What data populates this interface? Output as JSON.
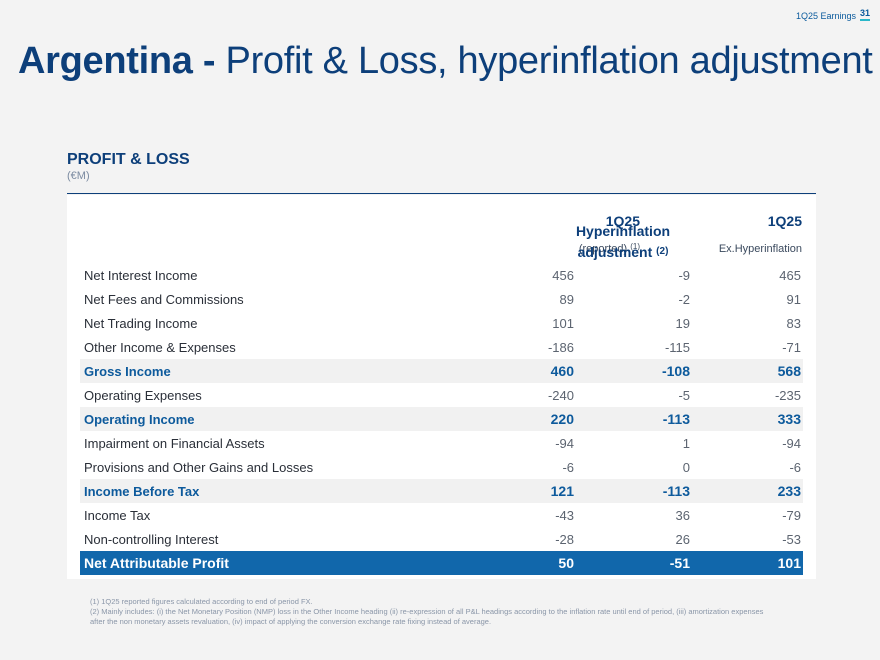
{
  "header": {
    "tag": "1Q25 Earnings",
    "page": "31"
  },
  "title": {
    "bold": "Argentina -",
    "rest": " Profit & Loss, hyperinflation adjustment"
  },
  "section": {
    "title": "PROFIT & LOSS",
    "unit": "(€M)"
  },
  "columns": {
    "c1": {
      "top": "1Q25",
      "bottom": "(reported)",
      "note": "(1)"
    },
    "c2": {
      "line1": "Hyperinflation",
      "line2": "adjustment",
      "note": "(2)"
    },
    "c3": {
      "top": "1Q25",
      "bottom": "Ex.Hyperinflation"
    }
  },
  "rows": [
    {
      "label": "Net Interest Income",
      "reported": "456",
      "adjustment": "-9",
      "ex": "465"
    },
    {
      "label": "Net Fees and Commissions",
      "reported": "89",
      "adjustment": "-2",
      "ex": "91"
    },
    {
      "label": "Net Trading Income",
      "reported": "101",
      "adjustment": "19",
      "ex": "83"
    },
    {
      "label": "Other Income & Expenses",
      "reported": "-186",
      "adjustment": "-115",
      "ex": "-71"
    },
    {
      "label": "Gross Income",
      "reported": "460",
      "adjustment": "-108",
      "ex": "568"
    },
    {
      "label": "Operating Expenses",
      "reported": "-240",
      "adjustment": "-5",
      "ex": "-235"
    },
    {
      "label": "Operating Income",
      "reported": "220",
      "adjustment": "-113",
      "ex": "333"
    },
    {
      "label": "Impairment on Financial Assets",
      "reported": "-94",
      "adjustment": "1",
      "ex": "-94"
    },
    {
      "label": "Provisions and Other Gains and Losses",
      "reported": "-6",
      "adjustment": "0",
      "ex": "-6"
    },
    {
      "label": "Income Before Tax",
      "reported": "121",
      "adjustment": "-113",
      "ex": "233"
    },
    {
      "label": "Income Tax",
      "reported": "-43",
      "adjustment": "36",
      "ex": "-79"
    },
    {
      "label": "Non-controlling Interest",
      "reported": "-28",
      "adjustment": "26",
      "ex": "-53"
    },
    {
      "label": "Net Attributable Profit",
      "reported": "50",
      "adjustment": "-51",
      "ex": "101"
    }
  ],
  "footnotes": {
    "f1": "(1) 1Q25 reported figures calculated according to end of period FX.",
    "f2": "(2) Mainly includes: (i) the Net Monetary Position (NMP) loss in the Other Income heading (ii) re-expression of all P&L headings according to the inflation rate until end of period, (iii) amortization expenses after the non monetary assets revaluation, (iv) impact of applying the conversion exchange rate fixing instead of average."
  }
}
